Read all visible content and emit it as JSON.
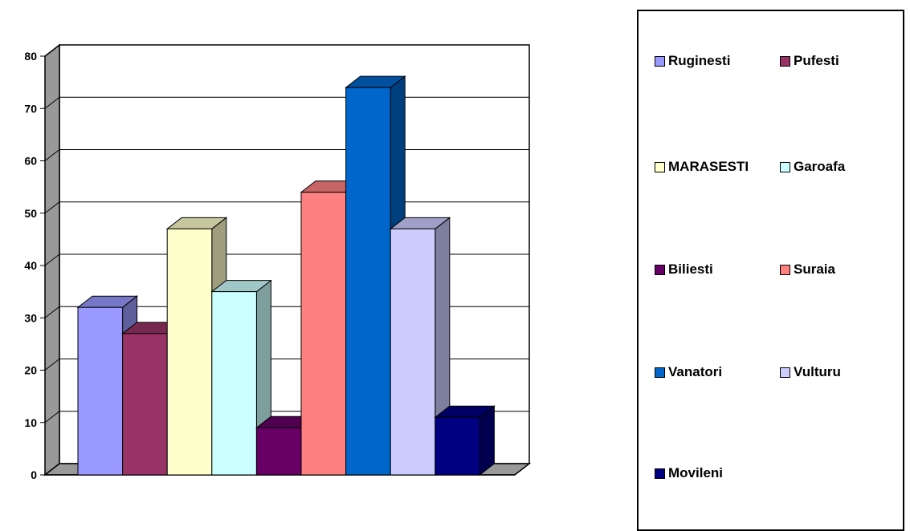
{
  "chart_data": {
    "type": "bar",
    "style": "3d-clustered-column",
    "ylim": [
      0,
      80
    ],
    "yticks": [
      0,
      10,
      20,
      30,
      40,
      50,
      60,
      70,
      80
    ],
    "grid": true,
    "legend_position": "right",
    "series": [
      {
        "name": "Ruginesti",
        "value": 32,
        "color": "#9999FF"
      },
      {
        "name": "Pufesti",
        "value": 27,
        "color": "#993366"
      },
      {
        "name": "MARASESTI",
        "value": 47,
        "color": "#FFFFCC"
      },
      {
        "name": "Garoafa",
        "value": 35,
        "color": "#CCFFFF"
      },
      {
        "name": "Biliesti",
        "value": 9,
        "color": "#660066"
      },
      {
        "name": "Suraia",
        "value": 54,
        "color": "#FF8080"
      },
      {
        "name": "Vanatori",
        "value": 74,
        "color": "#0066CC"
      },
      {
        "name": "Vulturu",
        "value": 47,
        "color": "#CCCCFF"
      },
      {
        "name": "Movileni",
        "value": 11,
        "color": "#000080"
      }
    ]
  }
}
